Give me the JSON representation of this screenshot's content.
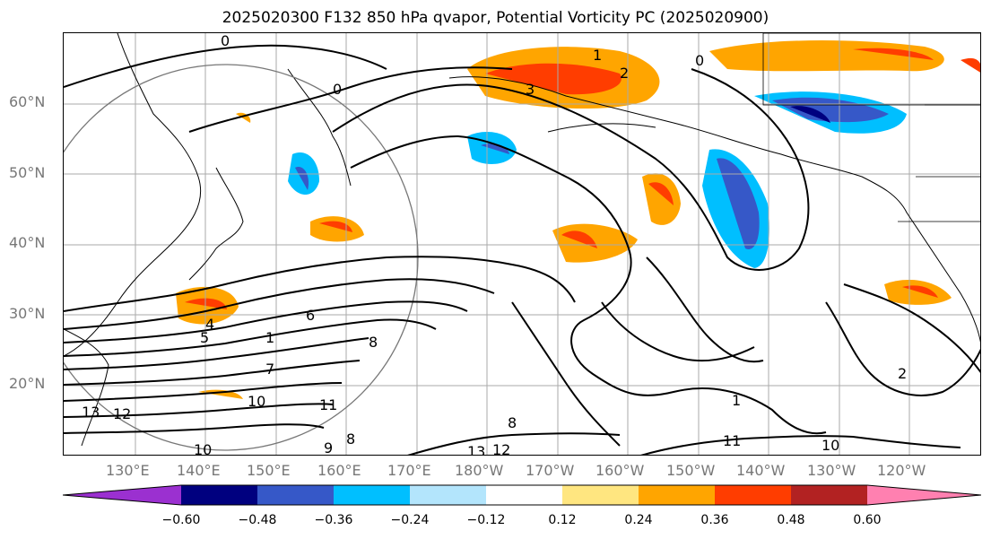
{
  "title": "2025020300 F132 850 hPa qvapor, Potential Vorticity PC (2025020900)",
  "lat_labels": [
    "60°N",
    "50°N",
    "40°N",
    "30°N",
    "20°N"
  ],
  "lon_labels": [
    "130°E",
    "140°E",
    "150°E",
    "160°E",
    "170°E",
    "180°W",
    "170°W",
    "160°W",
    "150°W",
    "140°W",
    "130°W",
    "120°W"
  ],
  "contour_labels": [
    "0",
    "0",
    "0",
    "1",
    "2",
    "3",
    "4",
    "5",
    "6",
    "7",
    "8",
    "8",
    "9",
    "10",
    "10",
    "11",
    "12",
    "13",
    "1",
    "1",
    "2",
    "8",
    "10",
    "11",
    "12",
    "13"
  ],
  "colorbar": {
    "ticks": [
      "−0.60",
      "−0.48",
      "−0.36",
      "−0.24",
      "−0.12",
      "0.12",
      "0.24",
      "0.36",
      "0.48",
      "0.60"
    ],
    "colors": [
      "#9b30d0",
      "#00007f",
      "#3658c8",
      "#00bfff",
      "#b3e5fc",
      "#ffffff",
      "#ffe680",
      "#ffa500",
      "#ff3d00",
      "#b22222",
      "#ff80b0"
    ]
  }
}
